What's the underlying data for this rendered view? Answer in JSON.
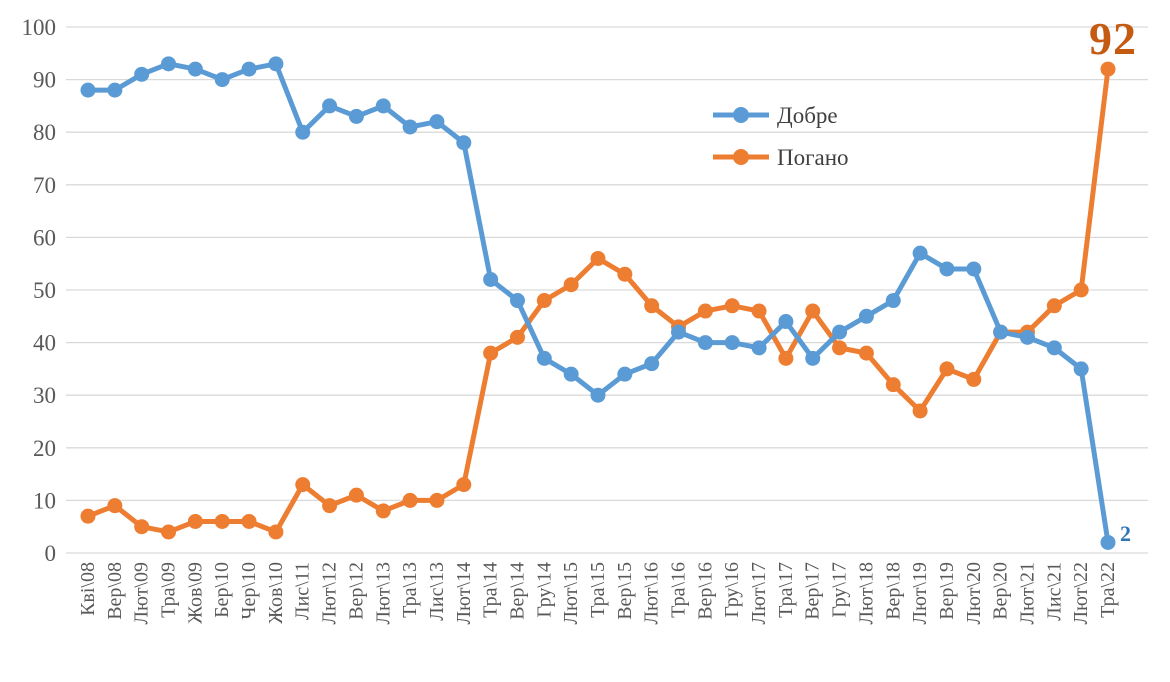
{
  "chart_data": {
    "type": "line",
    "title": "",
    "xlabel": "",
    "ylabel": "",
    "ylim": [
      0,
      100
    ],
    "ytick_step": 10,
    "grid": true,
    "legend_position": "inside-upper-right",
    "marker": "circle",
    "categories": [
      "Кві\\08",
      "Вер\\08",
      "Лют\\09",
      "Тра\\09",
      "Жов\\09",
      "Бер\\10",
      "Чер\\10",
      "Жов\\10",
      "Лис\\11",
      "Лют\\12",
      "Вер\\12",
      "Лют\\13",
      "Тра\\13",
      "Лис\\13",
      "Лют\\14",
      "Тра\\14",
      "Вер\\14",
      "Гру\\14",
      "Лют\\15",
      "Тра\\15",
      "Вер\\15",
      "Лют\\16",
      "Тра\\16",
      "Вер\\16",
      "Гру\\16",
      "Лют\\17",
      "Тра\\17",
      "Вер\\17",
      "Гру\\17",
      "Лют\\18",
      "Вер\\18",
      "Лют\\19",
      "Вер\\19",
      "Лют\\20",
      "Вер\\20",
      "Лют\\21",
      "Лис\\21",
      "Лют\\22",
      "Тра\\22"
    ],
    "series": [
      {
        "name": "Добре",
        "color": "#5B9BD5",
        "values": [
          88,
          88,
          91,
          93,
          92,
          90,
          92,
          93,
          80,
          85,
          83,
          85,
          81,
          82,
          78,
          52,
          48,
          37,
          34,
          30,
          34,
          36,
          42,
          40,
          40,
          39,
          44,
          37,
          42,
          45,
          48,
          57,
          54,
          54,
          42,
          41,
          39,
          35,
          2
        ]
      },
      {
        "name": "Погано",
        "color": "#ED7D31",
        "values": [
          7,
          9,
          5,
          4,
          6,
          6,
          6,
          4,
          13,
          9,
          11,
          8,
          10,
          10,
          13,
          38,
          41,
          48,
          51,
          56,
          53,
          47,
          43,
          46,
          47,
          46,
          37,
          46,
          39,
          38,
          32,
          27,
          35,
          33,
          42,
          42,
          47,
          50,
          92
        ]
      }
    ],
    "annotations": [
      {
        "text": "92",
        "series": "Погано",
        "category": "Тра\\22",
        "value": 92,
        "color": "#C55A11"
      },
      {
        "text": "2",
        "series": "Добре",
        "category": "Тра\\22",
        "value": 2,
        "color": "#2E75B6"
      }
    ],
    "axis_text_color": "#595959",
    "gridline_color": "#D9D9D9"
  }
}
